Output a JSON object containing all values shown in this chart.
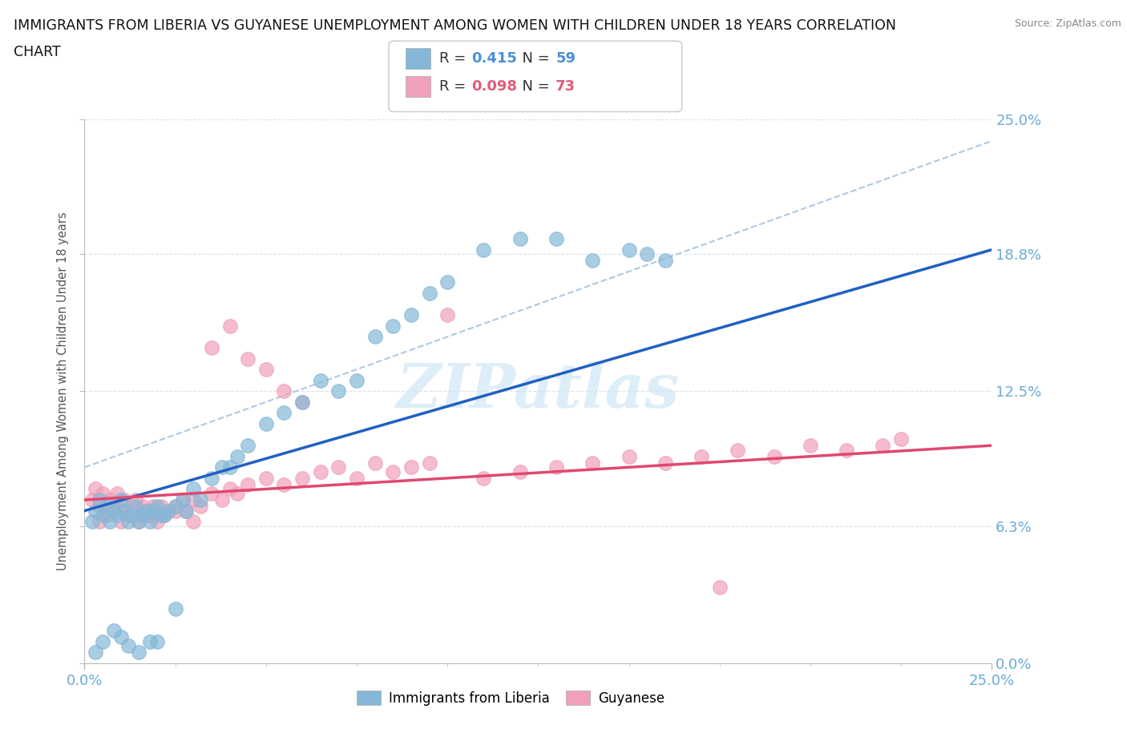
{
  "title_line1": "IMMIGRANTS FROM LIBERIA VS GUYANESE UNEMPLOYMENT AMONG WOMEN WITH CHILDREN UNDER 18 YEARS CORRELATION",
  "title_line2": "CHART",
  "source": "Source: ZipAtlas.com",
  "ylabel": "Unemployment Among Women with Children Under 18 years",
  "xlim": [
    0.0,
    0.25
  ],
  "ylim": [
    0.0,
    0.25
  ],
  "ytick_positions": [
    0.0,
    0.063,
    0.125,
    0.188,
    0.25
  ],
  "ytick_labels": [
    "0.0%",
    "6.3%",
    "12.5%",
    "18.8%",
    "25.0%"
  ],
  "xtick_positions": [
    0.0,
    0.25
  ],
  "xtick_labels": [
    "0.0%",
    "25.0%"
  ],
  "legend1_r": "0.415",
  "legend1_n": "59",
  "legend2_r": "0.098",
  "legend2_n": "73",
  "blue_scatter": "#85b8d8",
  "pink_scatter": "#f0a0b8",
  "blue_line": "#2060c0",
  "pink_line": "#e04870",
  "dashed_line": "#b0c8e0",
  "grid_color": "#d8e4f0",
  "axis_color": "#bbbbbb",
  "tick_color": "#6aaad8",
  "watermark_color": "#ddeef8",
  "title_color": "#111111",
  "source_color": "#888888",
  "r_blue": "#4a90d9",
  "r_pink": "#e05c7a",
  "liberia_x": [
    0.002,
    0.003,
    0.004,
    0.005,
    0.006,
    0.007,
    0.008,
    0.009,
    0.01,
    0.011,
    0.012,
    0.013,
    0.014,
    0.015,
    0.016,
    0.017,
    0.018,
    0.019,
    0.02,
    0.021,
    0.022,
    0.023,
    0.025,
    0.027,
    0.028,
    0.03,
    0.032,
    0.035,
    0.038,
    0.04,
    0.042,
    0.045,
    0.05,
    0.055,
    0.06,
    0.065,
    0.07,
    0.075,
    0.08,
    0.085,
    0.09,
    0.095,
    0.1,
    0.11,
    0.12,
    0.13,
    0.14,
    0.15,
    0.155,
    0.16,
    0.003,
    0.005,
    0.008,
    0.01,
    0.012,
    0.015,
    0.018,
    0.02,
    0.025
  ],
  "liberia_y": [
    0.065,
    0.07,
    0.075,
    0.068,
    0.072,
    0.065,
    0.07,
    0.068,
    0.075,
    0.07,
    0.065,
    0.068,
    0.072,
    0.065,
    0.068,
    0.07,
    0.065,
    0.07,
    0.072,
    0.068,
    0.068,
    0.07,
    0.072,
    0.075,
    0.07,
    0.08,
    0.075,
    0.085,
    0.09,
    0.09,
    0.095,
    0.1,
    0.11,
    0.115,
    0.12,
    0.13,
    0.125,
    0.13,
    0.15,
    0.155,
    0.16,
    0.17,
    0.175,
    0.19,
    0.195,
    0.195,
    0.185,
    0.19,
    0.188,
    0.185,
    0.005,
    0.01,
    0.015,
    0.012,
    0.008,
    0.005,
    0.01,
    0.01,
    0.025
  ],
  "guyanese_x": [
    0.002,
    0.003,
    0.004,
    0.005,
    0.006,
    0.007,
    0.008,
    0.009,
    0.01,
    0.011,
    0.012,
    0.013,
    0.014,
    0.015,
    0.016,
    0.017,
    0.018,
    0.019,
    0.02,
    0.021,
    0.022,
    0.023,
    0.025,
    0.027,
    0.028,
    0.03,
    0.032,
    0.035,
    0.038,
    0.04,
    0.042,
    0.045,
    0.05,
    0.055,
    0.06,
    0.065,
    0.07,
    0.075,
    0.08,
    0.085,
    0.09,
    0.095,
    0.1,
    0.11,
    0.12,
    0.13,
    0.14,
    0.15,
    0.16,
    0.17,
    0.18,
    0.19,
    0.2,
    0.21,
    0.22,
    0.225,
    0.004,
    0.006,
    0.008,
    0.01,
    0.012,
    0.015,
    0.018,
    0.02,
    0.025,
    0.03,
    0.035,
    0.04,
    0.045,
    0.05,
    0.055,
    0.06,
    0.175
  ],
  "guyanese_y": [
    0.075,
    0.08,
    0.072,
    0.078,
    0.07,
    0.075,
    0.072,
    0.078,
    0.07,
    0.075,
    0.068,
    0.072,
    0.075,
    0.068,
    0.072,
    0.07,
    0.068,
    0.072,
    0.07,
    0.072,
    0.068,
    0.07,
    0.072,
    0.075,
    0.07,
    0.075,
    0.072,
    0.078,
    0.075,
    0.08,
    0.078,
    0.082,
    0.085,
    0.082,
    0.085,
    0.088,
    0.09,
    0.085,
    0.092,
    0.088,
    0.09,
    0.092,
    0.16,
    0.085,
    0.088,
    0.09,
    0.092,
    0.095,
    0.092,
    0.095,
    0.098,
    0.095,
    0.1,
    0.098,
    0.1,
    0.103,
    0.065,
    0.068,
    0.07,
    0.065,
    0.068,
    0.065,
    0.068,
    0.065,
    0.07,
    0.065,
    0.145,
    0.155,
    0.14,
    0.135,
    0.125,
    0.12,
    0.035
  ]
}
